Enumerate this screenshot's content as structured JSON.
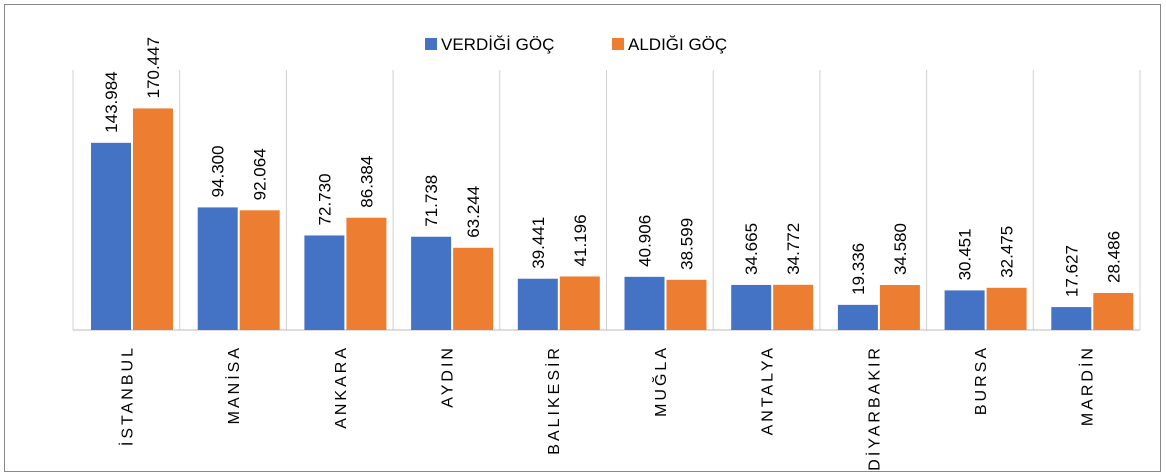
{
  "chart_data": {
    "type": "bar",
    "categories": [
      "İSTANBUL",
      "MANİSA",
      "ANKARA",
      "AYDIN",
      "BALIKESİR",
      "MUĞLA",
      "ANTALYA",
      "DİYARBAKIR",
      "BURSA",
      "MARDİN"
    ],
    "series": [
      {
        "name": "VERDİĞİ GÖÇ",
        "color": "#4472c4",
        "values": [
          143984,
          94300,
          72730,
          71738,
          39441,
          40906,
          34665,
          19336,
          30451,
          17627
        ],
        "value_labels": [
          "143.984",
          "94.300",
          "72.730",
          "71.738",
          "39.441",
          "40.906",
          "34.665",
          "19.336",
          "30.451",
          "17.627"
        ]
      },
      {
        "name": "ALDIĞI GÖÇ",
        "color": "#ed7d31",
        "values": [
          170447,
          92064,
          86384,
          63244,
          41196,
          38599,
          34772,
          34580,
          32475,
          28486
        ],
        "value_labels": [
          "170.447",
          "92.064",
          "86.384",
          "63.244",
          "41.196",
          "38.599",
          "34.772",
          "34.580",
          "32.475",
          "28.486"
        ]
      }
    ],
    "ylim": [
      0,
      200000
    ],
    "legend": "top"
  }
}
